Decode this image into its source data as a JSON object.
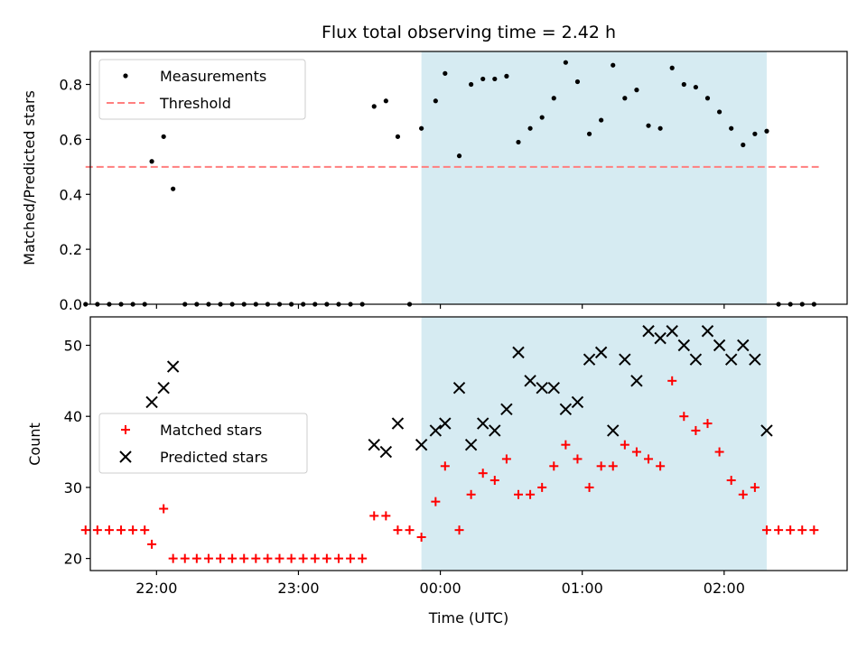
{
  "chart_data": [
    {
      "type": "scatter",
      "title": "Flux total observing time = 2.42 h",
      "xlabel": "",
      "ylabel": "Matched/Predicted stars",
      "ylim": [
        0,
        0.92
      ],
      "yticks": [
        "0.0",
        "0.2",
        "0.4",
        "0.6",
        "0.8"
      ],
      "xlim": [
        "21:32",
        "02:52"
      ],
      "x_tick_positions": [
        "22:00",
        "23:00",
        "00:00",
        "01:00",
        "02:00"
      ],
      "grid": false,
      "legend": "top-left",
      "shaded_interval": {
        "x0": "23:52",
        "x1": "02:18",
        "color": "#add8e6"
      },
      "series": [
        {
          "name": "Measurements",
          "marker": "dot",
          "color": "#000000",
          "points": [
            [
              "21:30",
              0
            ],
            [
              "21:35",
              0
            ],
            [
              "21:40",
              0
            ],
            [
              "21:45",
              0
            ],
            [
              "21:50",
              0
            ],
            [
              "21:55",
              0
            ],
            [
              "21:58",
              0.52
            ],
            [
              "22:03",
              0.61
            ],
            [
              "22:07",
              0.42
            ],
            [
              "22:12",
              0
            ],
            [
              "22:17",
              0
            ],
            [
              "22:22",
              0
            ],
            [
              "22:27",
              0
            ],
            [
              "22:32",
              0
            ],
            [
              "22:37",
              0
            ],
            [
              "22:42",
              0
            ],
            [
              "22:47",
              0
            ],
            [
              "22:52",
              0
            ],
            [
              "22:57",
              0
            ],
            [
              "23:02",
              0
            ],
            [
              "23:07",
              0
            ],
            [
              "23:12",
              0
            ],
            [
              "23:17",
              0
            ],
            [
              "23:22",
              0
            ],
            [
              "23:27",
              0
            ],
            [
              "23:32",
              0.72
            ],
            [
              "23:37",
              0.74
            ],
            [
              "23:42",
              0.61
            ],
            [
              "23:47",
              0
            ],
            [
              "23:52",
              0.64
            ],
            [
              "23:58",
              0.74
            ],
            [
              "00:02",
              0.84
            ],
            [
              "00:08",
              0.54
            ],
            [
              "00:13",
              0.8
            ],
            [
              "00:18",
              0.82
            ],
            [
              "00:23",
              0.82
            ],
            [
              "00:28",
              0.83
            ],
            [
              "00:33",
              0.59
            ],
            [
              "00:38",
              0.64
            ],
            [
              "00:43",
              0.68
            ],
            [
              "00:48",
              0.75
            ],
            [
              "00:53",
              0.88
            ],
            [
              "00:58",
              0.81
            ],
            [
              "01:03",
              0.62
            ],
            [
              "01:08",
              0.67
            ],
            [
              "01:13",
              0.87
            ],
            [
              "01:18",
              0.75
            ],
            [
              "01:23",
              0.78
            ],
            [
              "01:28",
              0.65
            ],
            [
              "01:33",
              0.64
            ],
            [
              "01:38",
              0.86
            ],
            [
              "01:43",
              0.8
            ],
            [
              "01:48",
              0.79
            ],
            [
              "01:53",
              0.75
            ],
            [
              "01:58",
              0.7
            ],
            [
              "02:03",
              0.64
            ],
            [
              "02:08",
              0.58
            ],
            [
              "02:13",
              0.62
            ],
            [
              "02:18",
              0.63
            ],
            [
              "02:23",
              0
            ],
            [
              "02:28",
              0
            ],
            [
              "02:33",
              0
            ],
            [
              "02:38",
              0
            ]
          ]
        },
        {
          "name": "Threshold",
          "type": "line",
          "dashed": true,
          "color": "#ff7f7f",
          "points": [
            [
              "21:30",
              0.5
            ],
            [
              "02:40",
              0.5
            ]
          ]
        }
      ]
    },
    {
      "type": "scatter",
      "title": "",
      "xlabel": "Time (UTC)",
      "ylabel": "Count",
      "ylim": [
        18.3,
        54
      ],
      "yticks": [
        "20",
        "30",
        "40",
        "50"
      ],
      "xlim": [
        "21:32",
        "02:52"
      ],
      "xticks": [
        "22:00",
        "23:00",
        "00:00",
        "01:00",
        "02:00"
      ],
      "grid": false,
      "legend": "center-left",
      "shaded_interval": {
        "x0": "23:52",
        "x1": "02:18",
        "color": "#add8e6"
      },
      "series": [
        {
          "name": "Matched stars",
          "marker": "+",
          "color": "#ff0000",
          "points": [
            [
              "21:30",
              24
            ],
            [
              "21:35",
              24
            ],
            [
              "21:40",
              24
            ],
            [
              "21:45",
              24
            ],
            [
              "21:50",
              24
            ],
            [
              "21:55",
              24
            ],
            [
              "21:58",
              22
            ],
            [
              "22:03",
              27
            ],
            [
              "22:07",
              20
            ],
            [
              "22:12",
              20
            ],
            [
              "22:17",
              20
            ],
            [
              "22:22",
              20
            ],
            [
              "22:27",
              20
            ],
            [
              "22:32",
              20
            ],
            [
              "22:37",
              20
            ],
            [
              "22:42",
              20
            ],
            [
              "22:47",
              20
            ],
            [
              "22:52",
              20
            ],
            [
              "22:57",
              20
            ],
            [
              "23:02",
              20
            ],
            [
              "23:07",
              20
            ],
            [
              "23:12",
              20
            ],
            [
              "23:17",
              20
            ],
            [
              "23:22",
              20
            ],
            [
              "23:27",
              20
            ],
            [
              "23:32",
              26
            ],
            [
              "23:37",
              26
            ],
            [
              "23:42",
              24
            ],
            [
              "23:47",
              24
            ],
            [
              "23:52",
              23
            ],
            [
              "23:58",
              28
            ],
            [
              "00:02",
              33
            ],
            [
              "00:08",
              24
            ],
            [
              "00:13",
              29
            ],
            [
              "00:18",
              32
            ],
            [
              "00:23",
              31
            ],
            [
              "00:28",
              34
            ],
            [
              "00:33",
              29
            ],
            [
              "00:38",
              29
            ],
            [
              "00:43",
              30
            ],
            [
              "00:48",
              33
            ],
            [
              "00:53",
              36
            ],
            [
              "00:58",
              34
            ],
            [
              "01:03",
              30
            ],
            [
              "01:08",
              33
            ],
            [
              "01:13",
              33
            ],
            [
              "01:18",
              36
            ],
            [
              "01:23",
              35
            ],
            [
              "01:28",
              34
            ],
            [
              "01:33",
              33
            ],
            [
              "01:38",
              45
            ],
            [
              "01:43",
              40
            ],
            [
              "01:48",
              38
            ],
            [
              "01:53",
              39
            ],
            [
              "01:58",
              35
            ],
            [
              "02:03",
              31
            ],
            [
              "02:08",
              29
            ],
            [
              "02:13",
              30
            ],
            [
              "02:18",
              24
            ],
            [
              "02:23",
              24
            ],
            [
              "02:28",
              24
            ],
            [
              "02:33",
              24
            ],
            [
              "02:38",
              24
            ]
          ]
        },
        {
          "name": "Predicted stars",
          "marker": "x",
          "color": "#000000",
          "points": [
            [
              "21:58",
              42
            ],
            [
              "22:03",
              44
            ],
            [
              "22:07",
              47
            ],
            [
              "23:32",
              36
            ],
            [
              "23:37",
              35
            ],
            [
              "23:42",
              39
            ],
            [
              "23:52",
              36
            ],
            [
              "23:58",
              38
            ],
            [
              "00:02",
              39
            ],
            [
              "00:08",
              44
            ],
            [
              "00:13",
              36
            ],
            [
              "00:18",
              39
            ],
            [
              "00:23",
              38
            ],
            [
              "00:28",
              41
            ],
            [
              "00:33",
              49
            ],
            [
              "00:38",
              45
            ],
            [
              "00:43",
              44
            ],
            [
              "00:48",
              44
            ],
            [
              "00:53",
              41
            ],
            [
              "00:58",
              42
            ],
            [
              "01:03",
              48
            ],
            [
              "01:08",
              49
            ],
            [
              "01:13",
              38
            ],
            [
              "01:18",
              48
            ],
            [
              "01:23",
              45
            ],
            [
              "01:28",
              52
            ],
            [
              "01:33",
              51
            ],
            [
              "01:38",
              52
            ],
            [
              "01:43",
              50
            ],
            [
              "01:48",
              48
            ],
            [
              "01:53",
              52
            ],
            [
              "01:58",
              50
            ],
            [
              "02:03",
              48
            ],
            [
              "02:08",
              50
            ],
            [
              "02:13",
              48
            ],
            [
              "02:18",
              38
            ]
          ]
        }
      ]
    }
  ]
}
